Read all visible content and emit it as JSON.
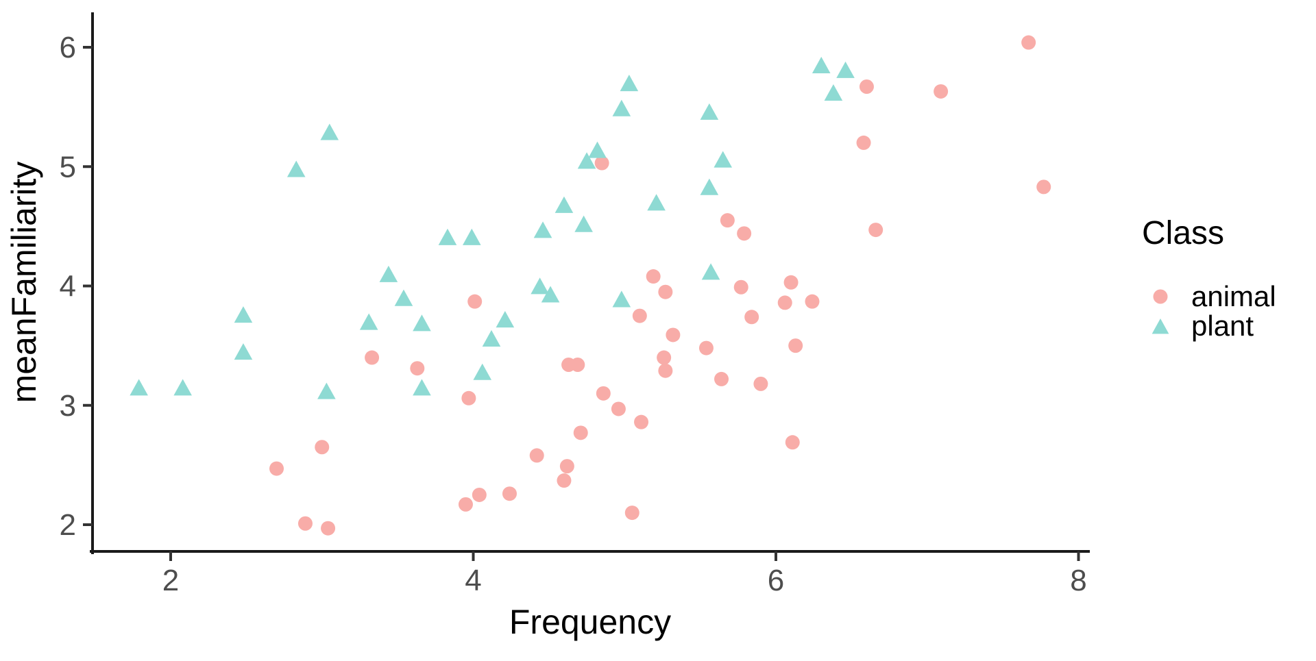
{
  "figure": {
    "background": "#ffffff",
    "axis_line_color": "#1a1a1a",
    "tick_color": "#333333",
    "tick_label_color": "#4d4d4d",
    "title_color": "#000000"
  },
  "axes": {
    "x_label": "Frequency",
    "y_label": "meanFamiliarity",
    "x_ticks": [
      2,
      4,
      6,
      8
    ],
    "y_ticks": [
      2,
      3,
      4,
      5,
      6
    ]
  },
  "legend": {
    "title": "Class",
    "items": [
      {
        "label": "animal",
        "marker": "circle",
        "color": "#F8ACA8"
      },
      {
        "label": "plant",
        "marker": "triangle",
        "color": "#8EDAD3"
      }
    ]
  },
  "chart_data": {
    "type": "scatter",
    "title": "",
    "xlabel": "Frequency",
    "ylabel": "meanFamiliarity",
    "xlim": [
      1.48,
      8.1
    ],
    "ylim": [
      1.78,
      6.28
    ],
    "x_ticks": [
      2,
      4,
      6,
      8
    ],
    "y_ticks": [
      2,
      3,
      4,
      5,
      6
    ],
    "grid": false,
    "legend_position": "right",
    "legend_title": "Class",
    "series": [
      {
        "name": "animal",
        "marker": "circle",
        "color": "#F8ACA8",
        "points": [
          [
            2.7,
            2.47
          ],
          [
            2.89,
            2.01
          ],
          [
            3.0,
            2.65
          ],
          [
            3.04,
            1.97
          ],
          [
            3.33,
            3.4
          ],
          [
            3.63,
            3.31
          ],
          [
            3.95,
            2.17
          ],
          [
            4.04,
            2.25
          ],
          [
            3.97,
            3.06
          ],
          [
            4.01,
            3.87
          ],
          [
            4.24,
            2.26
          ],
          [
            4.42,
            2.58
          ],
          [
            4.6,
            2.37
          ],
          [
            4.62,
            2.49
          ],
          [
            4.63,
            3.34
          ],
          [
            4.69,
            3.34
          ],
          [
            4.71,
            2.77
          ],
          [
            4.85,
            5.03
          ],
          [
            4.86,
            3.1
          ],
          [
            4.96,
            2.97
          ],
          [
            5.05,
            2.1
          ],
          [
            5.11,
            2.86
          ],
          [
            5.19,
            4.08
          ],
          [
            5.27,
            3.95
          ],
          [
            5.1,
            3.75
          ],
          [
            5.32,
            3.59
          ],
          [
            5.26,
            3.4
          ],
          [
            5.27,
            3.29
          ],
          [
            5.54,
            3.48
          ],
          [
            5.64,
            3.22
          ],
          [
            5.68,
            4.55
          ],
          [
            5.77,
            3.99
          ],
          [
            5.79,
            4.44
          ],
          [
            5.84,
            3.74
          ],
          [
            5.9,
            3.18
          ],
          [
            6.06,
            3.86
          ],
          [
            6.1,
            4.03
          ],
          [
            6.24,
            3.87
          ],
          [
            6.13,
            3.5
          ],
          [
            6.11,
            2.69
          ],
          [
            6.58,
            5.2
          ],
          [
            6.6,
            5.67
          ],
          [
            6.66,
            4.47
          ],
          [
            7.09,
            5.63
          ],
          [
            7.67,
            6.04
          ],
          [
            7.77,
            4.83
          ]
        ]
      },
      {
        "name": "plant",
        "marker": "triangle",
        "color": "#8EDAD3",
        "points": [
          [
            1.79,
            3.14
          ],
          [
            2.08,
            3.14
          ],
          [
            2.48,
            3.75
          ],
          [
            2.48,
            3.44
          ],
          [
            2.83,
            4.97
          ],
          [
            3.05,
            5.28
          ],
          [
            3.03,
            3.11
          ],
          [
            3.31,
            3.69
          ],
          [
            3.44,
            4.09
          ],
          [
            3.54,
            3.89
          ],
          [
            3.66,
            3.68
          ],
          [
            3.66,
            3.14
          ],
          [
            3.83,
            4.4
          ],
          [
            3.99,
            4.4
          ],
          [
            4.06,
            3.27
          ],
          [
            4.12,
            3.55
          ],
          [
            4.21,
            3.71
          ],
          [
            4.44,
            3.99
          ],
          [
            4.51,
            3.92
          ],
          [
            4.46,
            4.46
          ],
          [
            4.6,
            4.67
          ],
          [
            4.73,
            4.51
          ],
          [
            4.75,
            5.04
          ],
          [
            4.82,
            5.13
          ],
          [
            4.98,
            3.88
          ],
          [
            4.98,
            5.48
          ],
          [
            5.03,
            5.69
          ],
          [
            5.21,
            4.69
          ],
          [
            5.56,
            5.45
          ],
          [
            5.57,
            4.11
          ],
          [
            5.65,
            5.05
          ],
          [
            5.56,
            4.82
          ],
          [
            6.3,
            5.84
          ],
          [
            6.46,
            5.8
          ],
          [
            6.38,
            5.61
          ]
        ]
      }
    ]
  }
}
